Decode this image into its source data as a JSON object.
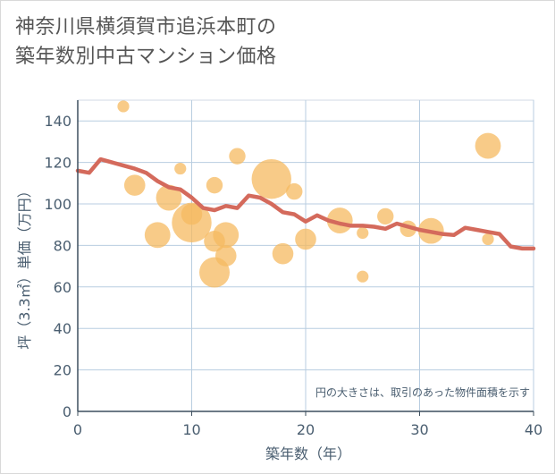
{
  "title_line1": "神奈川県横須賀市追浜本町の",
  "title_line2": "築年数別中古マンション価格",
  "chart_data": {
    "type": "scatter",
    "title": "神奈川県横須賀市追浜本町の築年数別中古マンション価格",
    "xlabel": "築年数（年）",
    "ylabel": "坪（3.3㎡）単価（万円）",
    "xlim": [
      0,
      40
    ],
    "ylim": [
      0,
      150
    ],
    "xticks": [
      0,
      10,
      20,
      30,
      40
    ],
    "yticks": [
      0,
      20,
      40,
      60,
      80,
      100,
      120,
      140
    ],
    "grid": true,
    "note": "円の大きさは、取引のあった物件面積を示す",
    "colors": {
      "bubble": "#f5b960",
      "line": "#d46a5c",
      "grid": "#b8cde0",
      "text": "#4a5e70"
    },
    "bubbles": [
      {
        "x": 4,
        "y": 147,
        "size": 1
      },
      {
        "x": 5,
        "y": 109,
        "size": 3
      },
      {
        "x": 7,
        "y": 85,
        "size": 4
      },
      {
        "x": 8,
        "y": 103,
        "size": 4
      },
      {
        "x": 9,
        "y": 117,
        "size": 1
      },
      {
        "x": 10,
        "y": 95,
        "size": 3
      },
      {
        "x": 10,
        "y": 91,
        "size": 7
      },
      {
        "x": 12,
        "y": 109,
        "size": 2
      },
      {
        "x": 12,
        "y": 82,
        "size": 3
      },
      {
        "x": 12,
        "y": 67,
        "size": 5
      },
      {
        "x": 13,
        "y": 85,
        "size": 4
      },
      {
        "x": 13,
        "y": 75,
        "size": 3
      },
      {
        "x": 14,
        "y": 123,
        "size": 2
      },
      {
        "x": 17,
        "y": 112,
        "size": 7
      },
      {
        "x": 18,
        "y": 76,
        "size": 3
      },
      {
        "x": 19,
        "y": 106,
        "size": 2
      },
      {
        "x": 20,
        "y": 83,
        "size": 3
      },
      {
        "x": 23,
        "y": 92,
        "size": 4
      },
      {
        "x": 25,
        "y": 86,
        "size": 1
      },
      {
        "x": 25,
        "y": 65,
        "size": 1
      },
      {
        "x": 27,
        "y": 94,
        "size": 2
      },
      {
        "x": 29,
        "y": 88,
        "size": 2
      },
      {
        "x": 31,
        "y": 87,
        "size": 4
      },
      {
        "x": 36,
        "y": 128,
        "size": 4
      },
      {
        "x": 36,
        "y": 83,
        "size": 1
      }
    ],
    "trend": {
      "x": [
        0,
        1,
        2,
        3,
        4,
        5,
        6,
        7,
        8,
        9,
        10,
        11,
        12,
        13,
        14,
        15,
        16,
        17,
        18,
        19,
        20,
        21,
        22,
        23,
        24,
        25,
        26,
        27,
        28,
        29,
        30,
        31,
        32,
        33,
        34,
        35,
        36,
        37,
        38,
        39,
        40
      ],
      "y": [
        116,
        115,
        121.5,
        120,
        118.5,
        117,
        115,
        111,
        108,
        107,
        103,
        98,
        97,
        99,
        98,
        104,
        103,
        100,
        96,
        95,
        91.5,
        94.5,
        92,
        90.5,
        89.5,
        89.5,
        89,
        88,
        90.5,
        89,
        87.5,
        86.5,
        85.5,
        85,
        88.5,
        87.5,
        86.5,
        85.5,
        79.5,
        78.5,
        78.5
      ]
    }
  }
}
